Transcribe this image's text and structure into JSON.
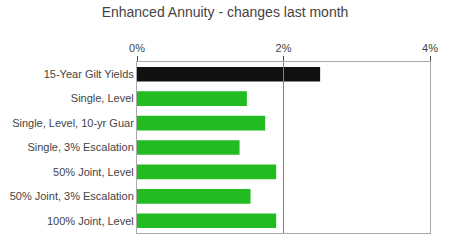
{
  "chart_data": {
    "type": "bar",
    "orientation": "horizontal",
    "title": "Enhanced Annuity - changes last month",
    "categories": [
      "100% Joint, Level",
      "50% Joint, 3% Escalation",
      "50% Joint, Level",
      "Single, 3% Escalation",
      "Single, Level, 10-yr Guar",
      "Single, Level",
      "15-Year Gilt Yields"
    ],
    "values": [
      1.9,
      1.55,
      1.9,
      1.4,
      1.75,
      1.5,
      2.5
    ],
    "colors": [
      "#22bb22",
      "#22bb22",
      "#22bb22",
      "#22bb22",
      "#22bb22",
      "#22bb22",
      "#111111"
    ],
    "xlim": [
      0,
      4
    ],
    "xticks": [
      {
        "value": 0,
        "label": "0%"
      },
      {
        "value": 2,
        "label": "2%"
      },
      {
        "value": 4,
        "label": "4%"
      }
    ],
    "vline": 2.0,
    "grid": false
  }
}
